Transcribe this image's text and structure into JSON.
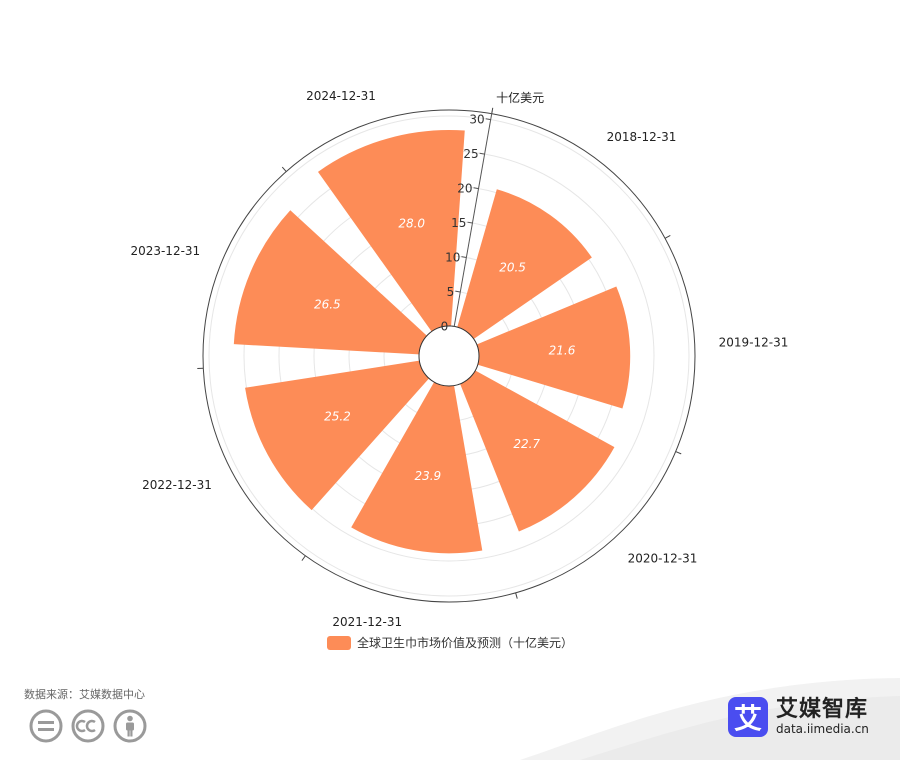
{
  "chart_data": {
    "type": "polar-bar",
    "unit_label": "十亿美元",
    "categories": [
      "2018-12-31",
      "2019-12-31",
      "2020-12-31",
      "2021-12-31",
      "2022-12-31",
      "2023-12-31",
      "2024-12-31"
    ],
    "series": [
      {
        "name": "全球卫生巾市场价值及预测（十亿美元）",
        "values": [
          20.5,
          21.6,
          22.7,
          23.9,
          25.2,
          26.5,
          28.0
        ],
        "labels": [
          "20.5",
          "21.6",
          "22.7",
          "23.9",
          "25.2",
          "26.5",
          "28.0"
        ]
      }
    ],
    "radial_ticks": [
      "0",
      "5",
      "10",
      "15",
      "20",
      "25",
      "30"
    ],
    "radial_range": [
      0,
      30
    ],
    "colors": {
      "bar": "#fd8c57",
      "axis": "#555555",
      "grid": "#e6e6e6"
    }
  },
  "legend": {
    "label": "全球卫生巾市场价值及预测（十亿美元）"
  },
  "source": {
    "text": "数据来源：艾媒数据中心"
  },
  "brand": {
    "badge": "艾",
    "name": "艾媒智库",
    "url": "data.iimedia.cn"
  },
  "icons": [
    "equal-icon",
    "cc-icon",
    "person-icon"
  ]
}
